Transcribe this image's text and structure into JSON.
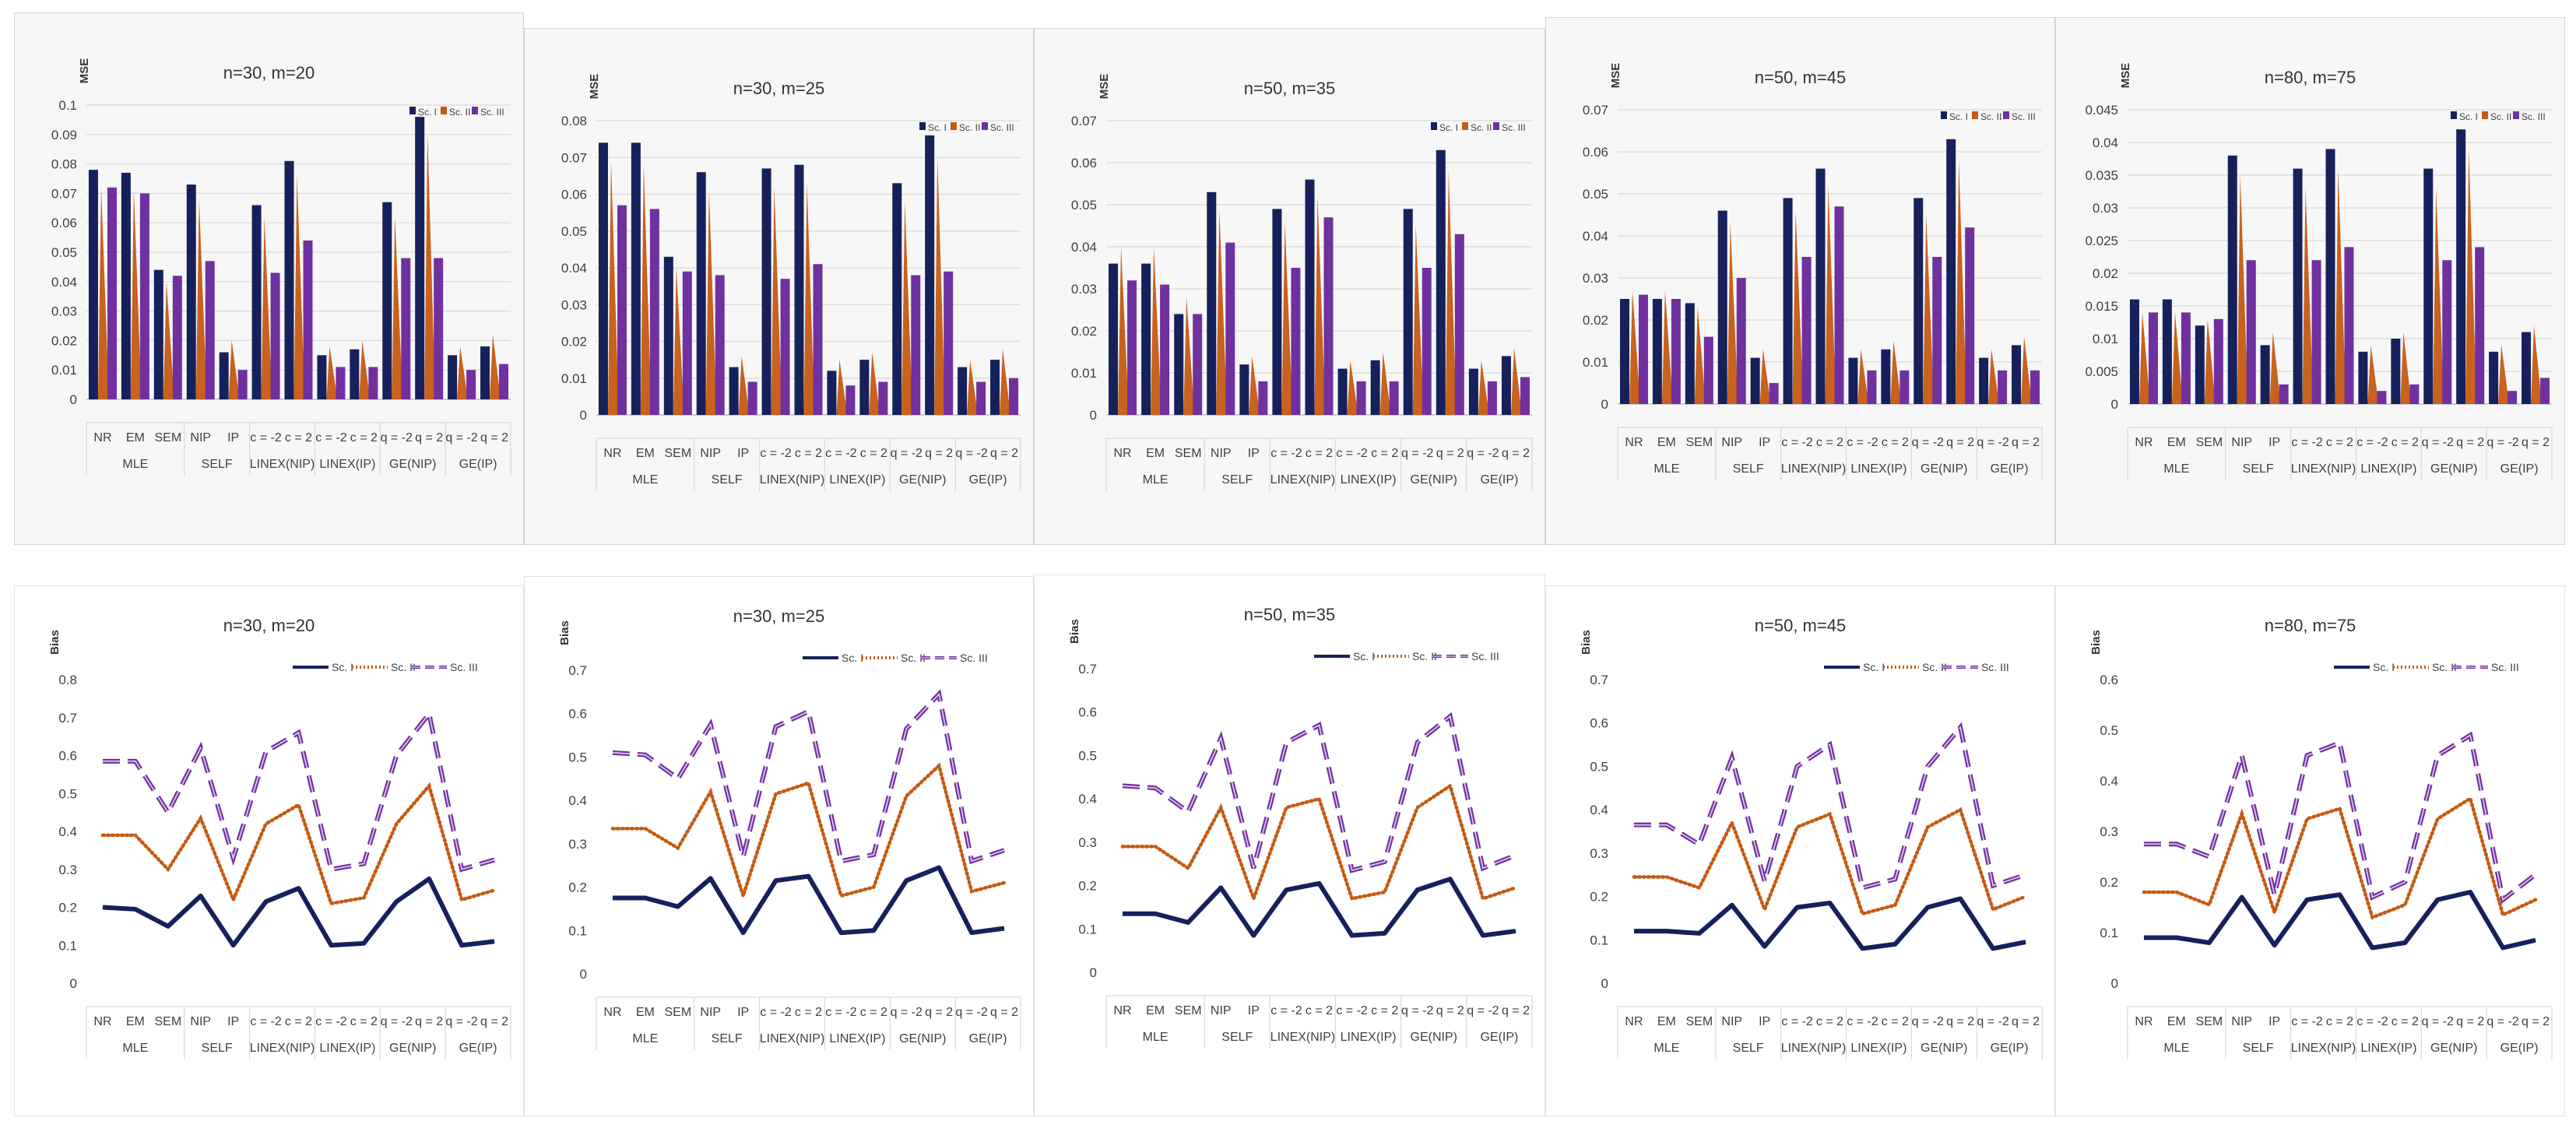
{
  "colors": {
    "sc1": "#16215c",
    "sc2": "#c55a11",
    "sc3": "#7030a0"
  },
  "legend": [
    "Sc. I",
    "Sc. II",
    "Sc. III"
  ],
  "categories": [
    "NR",
    "EM",
    "SEM",
    "NIP",
    "IP",
    "c = -2",
    "c = 2",
    "c = -2",
    "c = 2",
    "q = -2",
    "q = 2",
    "q = -2",
    "q = 2"
  ],
  "groups": [
    "MLE",
    "SELF",
    "LINEX(NIP)",
    "LINEX(IP)",
    "GE(NIP)",
    "GE(IP)"
  ],
  "chart_data": [
    {
      "type": "bar",
      "title": "n=30, m=20",
      "ylabel": "MSE",
      "ylim": [
        0,
        0.1
      ],
      "yticks": [
        "0",
        "0.01",
        "0.02",
        "0.03",
        "0.04",
        "0.05",
        "0.06",
        "0.07",
        "0.08",
        "0.09",
        "0.1"
      ],
      "series": [
        {
          "name": "Sc. I",
          "values": [
            0.078,
            0.077,
            0.044,
            0.073,
            0.016,
            0.066,
            0.081,
            0.015,
            0.017,
            0.067,
            0.096,
            0.015,
            0.018
          ]
        },
        {
          "name": "Sc. II",
          "values": [
            0.072,
            0.071,
            0.04,
            0.068,
            0.02,
            0.062,
            0.076,
            0.018,
            0.02,
            0.062,
            0.09,
            0.018,
            0.022
          ]
        },
        {
          "name": "Sc. III",
          "values": [
            0.072,
            0.07,
            0.042,
            0.047,
            0.01,
            0.043,
            0.054,
            0.011,
            0.011,
            0.048,
            0.048,
            0.01,
            0.012
          ]
        }
      ]
    },
    {
      "type": "bar",
      "title": "n=30, m=25",
      "ylabel": "MSE",
      "ylim": [
        0,
        0.08
      ],
      "yticks": [
        "0",
        "0.01",
        "0.02",
        "0.03",
        "0.04",
        "0.05",
        "0.06",
        "0.07",
        "0.08"
      ],
      "series": [
        {
          "name": "Sc. I",
          "values": [
            0.074,
            0.074,
            0.043,
            0.066,
            0.013,
            0.067,
            0.068,
            0.012,
            0.015,
            0.063,
            0.076,
            0.013,
            0.015
          ]
        },
        {
          "name": "Sc. II",
          "values": [
            0.069,
            0.068,
            0.04,
            0.061,
            0.016,
            0.062,
            0.063,
            0.015,
            0.017,
            0.058,
            0.07,
            0.015,
            0.018
          ]
        },
        {
          "name": "Sc. III",
          "values": [
            0.057,
            0.056,
            0.039,
            0.038,
            0.009,
            0.037,
            0.041,
            0.008,
            0.009,
            0.038,
            0.039,
            0.009,
            0.01
          ]
        }
      ]
    },
    {
      "type": "bar",
      "title": "n=50, m=35",
      "ylabel": "MSE",
      "ylim": [
        0,
        0.07
      ],
      "yticks": [
        "0",
        "0.01",
        "0.02",
        "0.03",
        "0.04",
        "0.05",
        "0.06",
        "0.07"
      ],
      "series": [
        {
          "name": "Sc. I",
          "values": [
            0.036,
            0.036,
            0.024,
            0.053,
            0.012,
            0.049,
            0.056,
            0.011,
            0.013,
            0.049,
            0.063,
            0.011,
            0.014
          ]
        },
        {
          "name": "Sc. II",
          "values": [
            0.04,
            0.04,
            0.028,
            0.049,
            0.014,
            0.046,
            0.052,
            0.013,
            0.015,
            0.045,
            0.058,
            0.013,
            0.016
          ]
        },
        {
          "name": "Sc. III",
          "values": [
            0.032,
            0.031,
            0.024,
            0.041,
            0.008,
            0.035,
            0.047,
            0.008,
            0.008,
            0.035,
            0.043,
            0.008,
            0.009
          ]
        }
      ]
    },
    {
      "type": "bar",
      "title": "n=50, m=45",
      "ylabel": "MSE",
      "ylim": [
        0,
        0.07
      ],
      "yticks": [
        "0",
        "0.01",
        "0.02",
        "0.03",
        "0.04",
        "0.05",
        "0.06",
        "0.07"
      ],
      "series": [
        {
          "name": "Sc. I",
          "values": [
            0.025,
            0.025,
            0.024,
            0.046,
            0.011,
            0.049,
            0.056,
            0.011,
            0.013,
            0.049,
            0.063,
            0.011,
            0.014
          ]
        },
        {
          "name": "Sc. II",
          "values": [
            0.027,
            0.027,
            0.023,
            0.043,
            0.013,
            0.046,
            0.052,
            0.013,
            0.015,
            0.045,
            0.058,
            0.013,
            0.016
          ]
        },
        {
          "name": "Sc. III",
          "values": [
            0.026,
            0.025,
            0.016,
            0.03,
            0.005,
            0.035,
            0.047,
            0.008,
            0.008,
            0.035,
            0.042,
            0.008,
            0.008
          ]
        }
      ]
    },
    {
      "type": "bar",
      "title": "n=80, m=75",
      "ylabel": "MSE",
      "ylim": [
        0,
        0.045
      ],
      "yticks": [
        "0",
        "0.005",
        "0.01",
        "0.015",
        "0.02",
        "0.025",
        "0.03",
        "0.035",
        "0.04",
        "0.045"
      ],
      "series": [
        {
          "name": "Sc. I",
          "values": [
            0.016,
            0.016,
            0.012,
            0.038,
            0.009,
            0.036,
            0.039,
            0.008,
            0.01,
            0.036,
            0.042,
            0.008,
            0.011
          ]
        },
        {
          "name": "Sc. II",
          "values": [
            0.014,
            0.014,
            0.013,
            0.035,
            0.011,
            0.033,
            0.036,
            0.009,
            0.011,
            0.033,
            0.039,
            0.009,
            0.012
          ]
        },
        {
          "name": "Sc. III",
          "values": [
            0.014,
            0.014,
            0.013,
            0.022,
            0.003,
            0.022,
            0.024,
            0.002,
            0.003,
            0.022,
            0.024,
            0.002,
            0.004
          ]
        }
      ]
    },
    {
      "type": "line",
      "title": "n=30, m=20",
      "ylabel": "Bias",
      "ylim": [
        0,
        0.8
      ],
      "yticks": [
        "0",
        "0.1",
        "0.2",
        "0.3",
        "0.4",
        "0.5",
        "0.6",
        "0.7",
        "0.8"
      ],
      "series": [
        {
          "name": "Sc. I",
          "values": [
            0.2,
            0.195,
            0.15,
            0.23,
            0.1,
            0.215,
            0.25,
            0.1,
            0.105,
            0.215,
            0.275,
            0.1,
            0.11
          ]
        },
        {
          "name": "Sc. II",
          "values": [
            0.39,
            0.39,
            0.3,
            0.435,
            0.22,
            0.42,
            0.47,
            0.21,
            0.225,
            0.42,
            0.52,
            0.22,
            0.245
          ]
        },
        {
          "name": "Sc. III",
          "values": [
            0.585,
            0.585,
            0.45,
            0.62,
            0.33,
            0.61,
            0.66,
            0.3,
            0.315,
            0.6,
            0.71,
            0.3,
            0.325
          ]
        }
      ]
    },
    {
      "type": "line",
      "title": "n=30, m=25",
      "ylabel": "Bias",
      "ylim": [
        0,
        0.7
      ],
      "yticks": [
        "0",
        "0.1",
        "0.2",
        "0.3",
        "0.4",
        "0.5",
        "0.6",
        "0.7"
      ],
      "series": [
        {
          "name": "Sc. I",
          "values": [
            0.175,
            0.175,
            0.155,
            0.22,
            0.095,
            0.215,
            0.225,
            0.095,
            0.1,
            0.215,
            0.245,
            0.095,
            0.105
          ]
        },
        {
          "name": "Sc. II",
          "values": [
            0.335,
            0.335,
            0.29,
            0.42,
            0.18,
            0.415,
            0.44,
            0.18,
            0.2,
            0.41,
            0.48,
            0.19,
            0.21
          ]
        },
        {
          "name": "Sc. III",
          "values": [
            0.51,
            0.505,
            0.45,
            0.575,
            0.27,
            0.57,
            0.605,
            0.26,
            0.275,
            0.565,
            0.645,
            0.26,
            0.285
          ]
        }
      ]
    },
    {
      "type": "line",
      "title": "n=50, m=35",
      "ylabel": "Bias",
      "ylim": [
        0,
        0.7
      ],
      "yticks": [
        "0",
        "0.1",
        "0.2",
        "0.3",
        "0.4",
        "0.5",
        "0.6",
        "0.7"
      ],
      "series": [
        {
          "name": "Sc. I",
          "values": [
            0.135,
            0.135,
            0.115,
            0.195,
            0.085,
            0.19,
            0.205,
            0.085,
            0.09,
            0.19,
            0.215,
            0.085,
            0.095
          ]
        },
        {
          "name": "Sc. II",
          "values": [
            0.29,
            0.29,
            0.24,
            0.38,
            0.17,
            0.38,
            0.4,
            0.17,
            0.185,
            0.38,
            0.43,
            0.17,
            0.195
          ]
        },
        {
          "name": "Sc. III",
          "values": [
            0.43,
            0.425,
            0.37,
            0.54,
            0.24,
            0.53,
            0.57,
            0.235,
            0.255,
            0.53,
            0.59,
            0.24,
            0.27
          ]
        }
      ]
    },
    {
      "type": "line",
      "title": "n=50, m=45",
      "ylabel": "Bias",
      "ylim": [
        0,
        0.7
      ],
      "yticks": [
        "0",
        "0.1",
        "0.2",
        "0.3",
        "0.4",
        "0.5",
        "0.6",
        "0.7"
      ],
      "series": [
        {
          "name": "Sc. I",
          "values": [
            0.12,
            0.12,
            0.115,
            0.18,
            0.085,
            0.175,
            0.185,
            0.08,
            0.09,
            0.175,
            0.195,
            0.08,
            0.095
          ]
        },
        {
          "name": "Sc. II",
          "values": [
            0.245,
            0.245,
            0.22,
            0.37,
            0.17,
            0.36,
            0.39,
            0.16,
            0.18,
            0.36,
            0.4,
            0.17,
            0.2
          ]
        },
        {
          "name": "Sc. III",
          "values": [
            0.365,
            0.365,
            0.32,
            0.52,
            0.235,
            0.5,
            0.55,
            0.22,
            0.24,
            0.5,
            0.59,
            0.225,
            0.25
          ]
        }
      ]
    },
    {
      "type": "line",
      "title": "n=80, m=75",
      "ylabel": "Bias",
      "ylim": [
        0,
        0.6
      ],
      "yticks": [
        "0",
        "0.1",
        "0.2",
        "0.3",
        "0.4",
        "0.5",
        "0.6"
      ],
      "series": [
        {
          "name": "Sc. I",
          "values": [
            0.09,
            0.09,
            0.08,
            0.17,
            0.075,
            0.165,
            0.175,
            0.07,
            0.08,
            0.165,
            0.18,
            0.07,
            0.085
          ]
        },
        {
          "name": "Sc. II",
          "values": [
            0.18,
            0.18,
            0.155,
            0.335,
            0.14,
            0.325,
            0.345,
            0.13,
            0.155,
            0.325,
            0.365,
            0.135,
            0.165
          ]
        },
        {
          "name": "Sc. III",
          "values": [
            0.275,
            0.275,
            0.25,
            0.45,
            0.175,
            0.45,
            0.475,
            0.17,
            0.2,
            0.45,
            0.49,
            0.165,
            0.215
          ]
        }
      ]
    }
  ]
}
